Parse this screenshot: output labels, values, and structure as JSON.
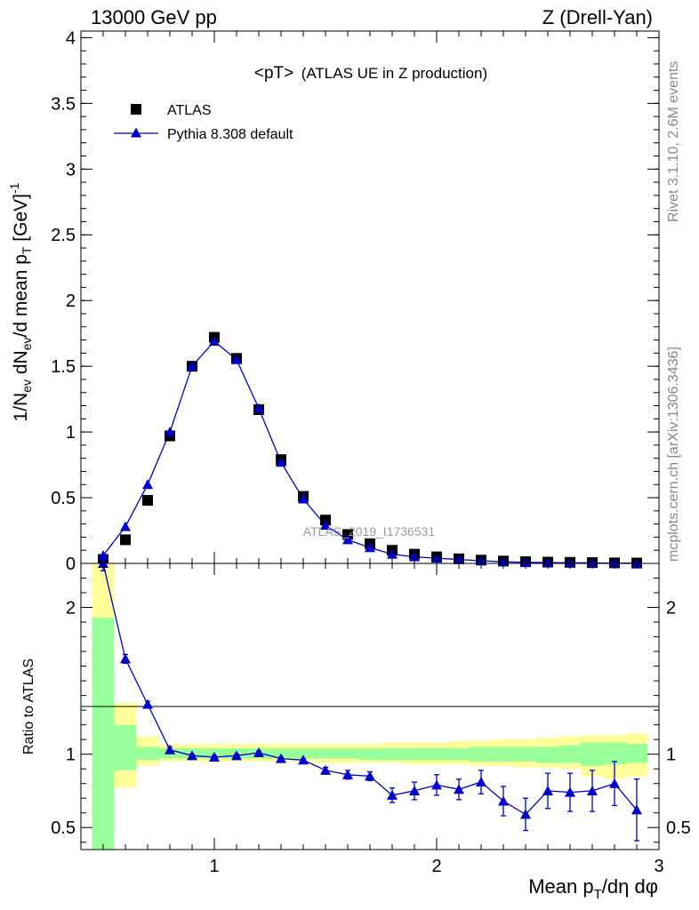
{
  "header": {
    "left": "13000 GeV pp",
    "right": "Z (Drell-Yan)"
  },
  "side_labels": {
    "rivet": "Rivet 3.1.10,  2.6M events",
    "mcplots": "mcplots.cern.ch [arXiv:1306.3436]"
  },
  "plot_title": {
    "main": "<pT>",
    "sub": "(ATLAS UE in Z production)"
  },
  "watermark": "ATLAS_2019_I1736531",
  "legend": {
    "placement": "top-left",
    "data_label": "ATLAS",
    "mc_label": "Pythia 8.308 default"
  },
  "colors": {
    "mc": "#0000cc",
    "data": "#000000",
    "band_outer": "#ffff99",
    "band_inner": "#99ff99"
  },
  "chart_data": [
    {
      "type": "scatter",
      "panel": "main",
      "ylabel": "1/N_ev dN_ev/d mean p_T [GeV]^-1",
      "xlim": [
        0.4,
        3.0
      ],
      "ylim": [
        0,
        4.05
      ],
      "yticks": [
        0,
        0.5,
        1,
        1.5,
        2,
        2.5,
        3,
        3.5,
        4
      ],
      "ytick_labels": [
        "0",
        "0.5",
        "1",
        "1.5",
        "2",
        "2.5",
        "3",
        "3.5",
        "4"
      ],
      "x": [
        0.5,
        0.6,
        0.7,
        0.8,
        0.9,
        1.0,
        1.1,
        1.2,
        1.3,
        1.4,
        1.5,
        1.6,
        1.7,
        1.8,
        1.9,
        2.0,
        2.1,
        2.2,
        2.3,
        2.4,
        2.5,
        2.6,
        2.7,
        2.8,
        2.9
      ],
      "series": [
        {
          "name": "ATLAS",
          "marker": "square",
          "values": [
            0.03,
            0.18,
            0.48,
            0.97,
            1.5,
            1.72,
            1.56,
            1.17,
            0.79,
            0.51,
            0.33,
            0.22,
            0.15,
            0.1,
            0.07,
            0.05,
            0.035,
            0.025,
            0.018,
            0.013,
            0.01,
            0.008,
            0.006,
            0.004,
            0.003
          ]
        },
        {
          "name": "Pythia 8.308 default",
          "marker": "triangle",
          "values": [
            0.06,
            0.28,
            0.6,
            1.0,
            1.5,
            1.69,
            1.55,
            1.18,
            0.77,
            0.49,
            0.29,
            0.18,
            0.12,
            0.07,
            0.05,
            0.04,
            0.03,
            0.02,
            0.012,
            0.008,
            0.007,
            0.005,
            0.004,
            0.003,
            0.002
          ]
        }
      ]
    },
    {
      "type": "scatter",
      "panel": "ratio",
      "xlabel": "Mean p_T/dη dφ",
      "ylabel": "Ratio to ATLAS",
      "xlim": [
        0.4,
        3.0
      ],
      "ylim": [
        0.35,
        2.3
      ],
      "xticks": [
        1,
        2,
        3
      ],
      "xtick_labels": [
        "1",
        "2",
        "3"
      ],
      "yticks": [
        0.5,
        1,
        2
      ],
      "ytick_labels": [
        "0.5",
        "1",
        "2"
      ],
      "x": [
        0.5,
        0.6,
        0.7,
        0.8,
        0.9,
        1.0,
        1.1,
        1.2,
        1.3,
        1.4,
        1.5,
        1.6,
        1.7,
        1.8,
        1.9,
        2.0,
        2.1,
        2.2,
        2.3,
        2.4,
        2.5,
        2.6,
        2.7,
        2.8,
        2.9
      ],
      "series": [
        {
          "name": "Pythia 8.308 default",
          "values": [
            2.3,
            1.65,
            1.34,
            1.03,
            0.99,
            0.98,
            0.99,
            1.01,
            0.97,
            0.96,
            0.89,
            0.86,
            0.85,
            0.72,
            0.75,
            0.79,
            0.76,
            0.81,
            0.68,
            0.59,
            0.75,
            0.74,
            0.75,
            0.8,
            0.62
          ],
          "errors": [
            0.05,
            0.03,
            0.02,
            0.02,
            0.01,
            0.01,
            0.01,
            0.01,
            0.01,
            0.01,
            0.02,
            0.03,
            0.03,
            0.05,
            0.06,
            0.07,
            0.07,
            0.08,
            0.1,
            0.11,
            0.12,
            0.13,
            0.14,
            0.15,
            0.21
          ]
        }
      ],
      "bands": {
        "x_edges": [
          0.45,
          0.55,
          0.65,
          0.75,
          0.85,
          0.95,
          1.05,
          1.15,
          1.25,
          1.35,
          1.45,
          1.55,
          1.65,
          1.75,
          1.85,
          1.95,
          2.05,
          2.15,
          2.25,
          2.35,
          2.45,
          2.55,
          2.65,
          2.75,
          2.85,
          2.95
        ],
        "outer_lo": [
          0.0,
          0.77,
          0.92,
          0.95,
          0.95,
          0.95,
          0.95,
          0.95,
          0.95,
          0.95,
          0.94,
          0.94,
          0.94,
          0.94,
          0.93,
          0.93,
          0.93,
          0.92,
          0.92,
          0.91,
          0.91,
          0.9,
          0.85,
          0.83,
          0.85
        ],
        "outer_hi": [
          2.3,
          1.35,
          1.12,
          1.07,
          1.07,
          1.07,
          1.07,
          1.07,
          1.07,
          1.07,
          1.07,
          1.07,
          1.07,
          1.08,
          1.08,
          1.08,
          1.09,
          1.09,
          1.1,
          1.1,
          1.11,
          1.12,
          1.13,
          1.13,
          1.14
        ],
        "inner_lo": [
          0.3,
          0.89,
          0.96,
          0.97,
          0.97,
          0.97,
          0.97,
          0.97,
          0.97,
          0.97,
          0.97,
          0.97,
          0.96,
          0.96,
          0.96,
          0.96,
          0.96,
          0.95,
          0.95,
          0.95,
          0.94,
          0.94,
          0.92,
          0.93,
          0.94
        ],
        "inner_hi": [
          1.93,
          1.2,
          1.05,
          1.04,
          1.04,
          1.04,
          1.04,
          1.04,
          1.04,
          1.04,
          1.04,
          1.04,
          1.04,
          1.04,
          1.04,
          1.04,
          1.04,
          1.05,
          1.05,
          1.05,
          1.05,
          1.06,
          1.08,
          1.08,
          1.07
        ]
      }
    }
  ]
}
